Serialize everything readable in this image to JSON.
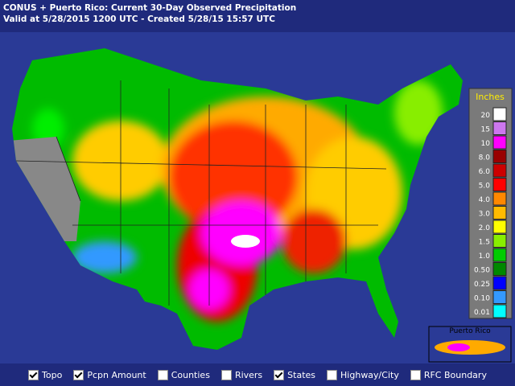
{
  "header": {
    "title": "CONUS + Puerto Rico: Current 30-Day Observed Precipitation",
    "subtitle": "Valid at 5/28/2015 1200 UTC - Created 5/28/15 15:57 UTC"
  },
  "legend": {
    "title": "Inches",
    "items": [
      {
        "label": "20",
        "color": "#ffffff"
      },
      {
        "label": "15",
        "color": "#cc77ee"
      },
      {
        "label": "10",
        "color": "#ff00ff"
      },
      {
        "label": "8.0",
        "color": "#990000"
      },
      {
        "label": "6.0",
        "color": "#cc0000"
      },
      {
        "label": "5.0",
        "color": "#ff0000"
      },
      {
        "label": "4.0",
        "color": "#ff8800"
      },
      {
        "label": "3.0",
        "color": "#ffbb00"
      },
      {
        "label": "2.0",
        "color": "#ffff00"
      },
      {
        "label": "1.5",
        "color": "#88ee00"
      },
      {
        "label": "1.0",
        "color": "#00cc00"
      },
      {
        "label": "0.50",
        "color": "#008800"
      },
      {
        "label": "0.25",
        "color": "#0000ff"
      },
      {
        "label": "0.10",
        "color": "#3399ff"
      },
      {
        "label": "0.01",
        "color": "#00ffff"
      }
    ]
  },
  "inset": {
    "label": "Puerto Rico"
  },
  "controls": [
    {
      "label": "Topo",
      "checked": true
    },
    {
      "label": "Pcpn Amount",
      "checked": true
    },
    {
      "label": "Counties",
      "checked": false
    },
    {
      "label": "Rivers",
      "checked": false
    },
    {
      "label": "States",
      "checked": true
    },
    {
      "label": "Highway/City",
      "checked": false
    },
    {
      "label": "RFC Boundary",
      "checked": false
    }
  ]
}
